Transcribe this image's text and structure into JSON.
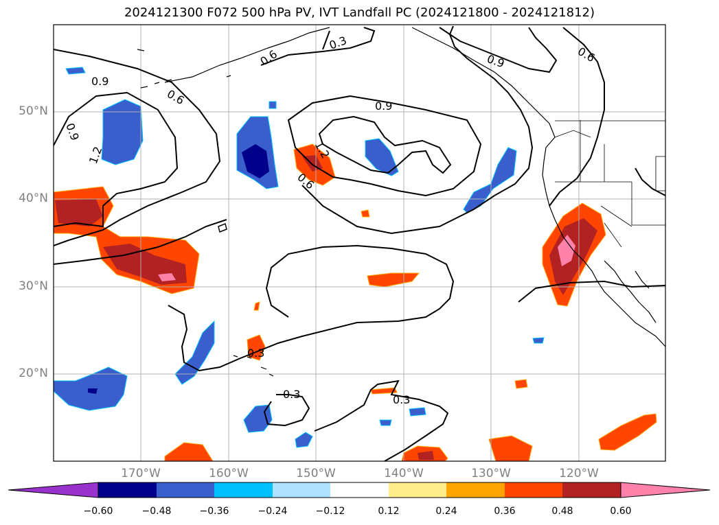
{
  "title": "2024121300 F072 500 hPa PV, IVT Landfall PC (2024121800 - 2024121812)",
  "lon_labels": [
    "170°W",
    "160°W",
    "150°W",
    "140°W",
    "130°W",
    "120°W"
  ],
  "lat_labels": [
    "50°N",
    "40°N",
    "30°N",
    "20°N"
  ],
  "contour_labels": [
    "0.9",
    "0.6",
    "0.3",
    "0.6",
    "0.9",
    "0.6",
    "0.9",
    "0.9",
    "1.2",
    "0.6",
    "1.2",
    "0.3",
    "0.3",
    "0.3"
  ],
  "colorbar": {
    "ticks": [
      "−0.60",
      "−0.48",
      "−0.36",
      "−0.24",
      "−0.12",
      "0.12",
      "0.24",
      "0.36",
      "0.48",
      "0.60"
    ],
    "colors": [
      "#9932cc",
      "#00008b",
      "#3a5fcd",
      "#00bfff",
      "#b0e2ff",
      "#ffffff",
      "#ffec8b",
      "#ffa500",
      "#ff4500",
      "#b22222",
      "#ff82ab"
    ]
  },
  "colors": {
    "neg_weak": "#3a5fcd",
    "neg_strong": "#00008b",
    "neg_edge": "#00bfff",
    "pos_weak": "#ff4500",
    "pos_mid": "#b22222",
    "pos_strong": "#ff82ab",
    "pos_edge": "#ffa500"
  }
}
